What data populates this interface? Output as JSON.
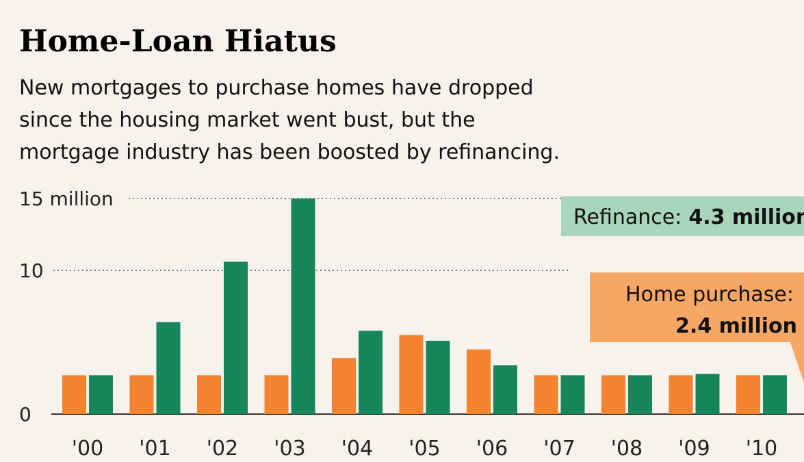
{
  "chart_data": {
    "type": "bar",
    "title": "Home-Loan Hiatus",
    "subtitle": [
      "New mortgages to purchase homes have dropped",
      "since the housing market went bust, but the",
      "mortgage industry has been boosted by refinancing."
    ],
    "categories": [
      "'00",
      "'01",
      "'02",
      "'03",
      "'04",
      "'05",
      "'06",
      "'07",
      "'08",
      "'09",
      "'10"
    ],
    "series": [
      {
        "color": "#f5822f",
        "values": [
          2.7,
          2.7,
          2.7,
          2.7,
          3.9,
          5.5,
          4.5,
          2.7,
          2.7,
          2.7,
          2.7
        ]
      },
      {
        "color": "#17865a",
        "values": [
          2.7,
          6.4,
          10.6,
          15,
          5.8,
          5.1,
          3.4,
          2.7,
          2.7,
          2.8,
          2.7
        ]
      }
    ],
    "ylim": [
      0,
      15
    ],
    "yticks": [
      0,
      10,
      {
        "value": 15,
        "label": "15 million"
      }
    ],
    "grid": true,
    "annotations": [
      {
        "label": "Refinance:",
        "value_label": "4.3 million",
        "color": "#a9d6bb"
      },
      {
        "label": "Home purchase:",
        "value_label": "2.4 million",
        "color": "#f6a766"
      }
    ]
  }
}
